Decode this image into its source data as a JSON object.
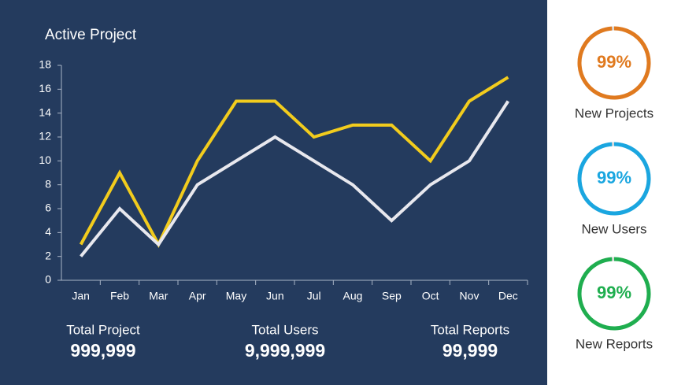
{
  "chart_data": {
    "type": "line",
    "title": "Active Project",
    "categories": [
      "Jan",
      "Feb",
      "Mar",
      "Apr",
      "May",
      "Jun",
      "Jul",
      "Aug",
      "Sep",
      "Oct",
      "Nov",
      "Dec"
    ],
    "series": [
      {
        "color": "#f2cc1d",
        "values": [
          3,
          9,
          3,
          10,
          15,
          15,
          12,
          13,
          13,
          10,
          15,
          17
        ]
      },
      {
        "color": "#e8e8ee",
        "values": [
          2,
          6,
          3,
          8,
          10,
          12,
          10,
          8,
          5,
          8,
          10,
          15
        ]
      }
    ],
    "ylim": [
      0,
      18
    ],
    "yticks": [
      0,
      2,
      4,
      6,
      8,
      10,
      12,
      14,
      16,
      18
    ]
  },
  "stats": [
    {
      "label": "Total Project",
      "value": "999,999"
    },
    {
      "label": "Total Users",
      "value": "9,999,999"
    },
    {
      "label": "Total Reports",
      "value": "99,999"
    }
  ],
  "rings": {
    "values": [
      99,
      99,
      99
    ],
    "value_labels": [
      "99%",
      "99%",
      "99%"
    ],
    "labels": [
      "New Projects",
      "New Users",
      "New Reports"
    ],
    "colors": [
      "#e07a1f",
      "#1aa6e0",
      "#1fae4f"
    ]
  }
}
